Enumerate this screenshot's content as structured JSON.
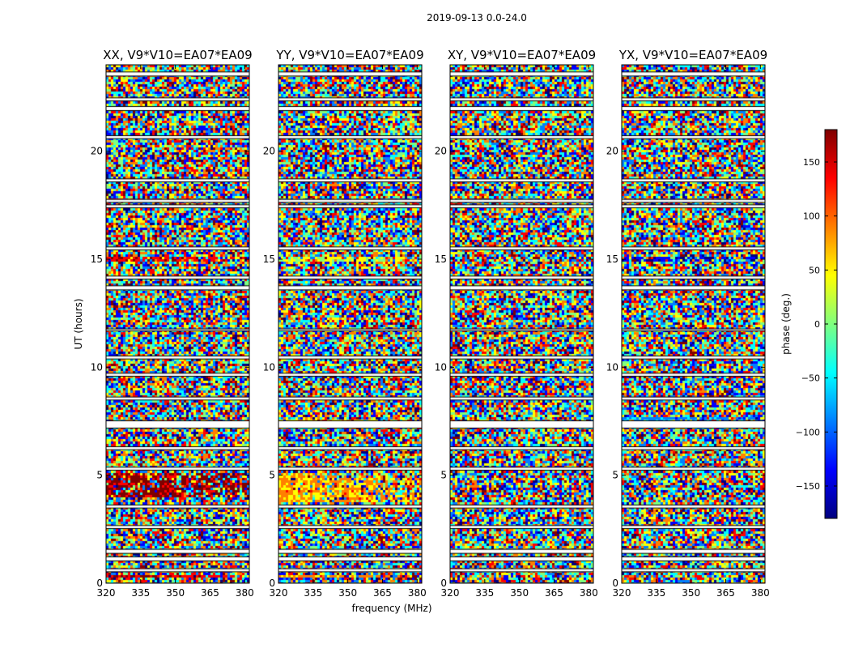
{
  "chart_data": {
    "type": "heatmap",
    "suptitle": "2019-09-13 0.0-24.0",
    "xlabel": "frequency (MHz)",
    "ylabel": "UT (hours)",
    "xlim": [
      320,
      382
    ],
    "ylim": [
      0,
      24
    ],
    "xticks": [
      320,
      335,
      350,
      365,
      380
    ],
    "yticks": [
      0,
      5,
      10,
      15,
      20
    ],
    "colorbar": {
      "label": "phase (deg.)",
      "range": [
        -180,
        180
      ],
      "ticks": [
        -150,
        -100,
        -50,
        0,
        50,
        100,
        150
      ],
      "tick_labels": [
        "−150",
        "−100",
        "−50",
        "0",
        "50",
        "100",
        "150"
      ],
      "colormap": [
        "#00007f",
        "#0000ff",
        "#007fff",
        "#00ffff",
        "#7fff7f",
        "#ffff00",
        "#ff7f00",
        "#ff0000",
        "#7f0000"
      ]
    },
    "panels": [
      {
        "title": "XX, V9*V10=EA07*EA09",
        "mode": "noise",
        "structured_bands": [
          {
            "ut": [
              4.0,
              5.2
            ],
            "phase": 170
          },
          {
            "ut": [
              14.9,
              15.15
            ],
            "phase": 140
          },
          {
            "ut": [
              0.3,
              0.45
            ],
            "phase": 150
          },
          {
            "ut": [
              17.8,
              17.9
            ],
            "phase": 150
          }
        ]
      },
      {
        "title": "YY, V9*V10=EA07*EA09",
        "mode": "noise",
        "structured_bands": [
          {
            "ut": [
              3.8,
              5.2
            ],
            "phase": 70
          },
          {
            "ut": [
              14.9,
              15.15
            ],
            "phase": 30
          },
          {
            "ut": [
              7.4,
              7.6
            ],
            "phase": 60
          },
          {
            "ut": [
              0.3,
              0.45
            ],
            "phase": 70
          }
        ]
      },
      {
        "title": "XY, V9*V10=EA07*EA09",
        "mode": "noise",
        "structured_bands": []
      },
      {
        "title": "YX, V9*V10=EA07*EA09",
        "mode": "noise",
        "structured_bands": [
          {
            "ut": [
              15.0,
              15.2
            ],
            "phase": -150
          },
          {
            "ut": [
              7.5,
              7.7
            ],
            "phase": -80
          }
        ]
      }
    ],
    "flagged_ut_bands": [
      [
        0.55,
        0.65
      ],
      [
        1.05,
        1.2
      ],
      [
        1.4,
        1.55
      ],
      [
        2.55,
        2.65
      ],
      [
        3.5,
        3.6
      ],
      [
        5.25,
        5.35
      ],
      [
        6.2,
        6.3
      ],
      [
        7.2,
        7.5
      ],
      [
        8.5,
        8.6
      ],
      [
        9.6,
        9.7
      ],
      [
        10.4,
        10.5
      ],
      [
        11.7,
        11.75
      ],
      [
        13.6,
        13.75
      ],
      [
        14.1,
        14.2
      ],
      [
        15.45,
        15.55
      ],
      [
        17.4,
        17.5
      ],
      [
        17.65,
        17.75
      ],
      [
        18.6,
        18.7
      ],
      [
        20.6,
        20.7
      ],
      [
        21.9,
        22.05
      ],
      [
        22.35,
        22.45
      ],
      [
        23.5,
        23.65
      ]
    ]
  }
}
